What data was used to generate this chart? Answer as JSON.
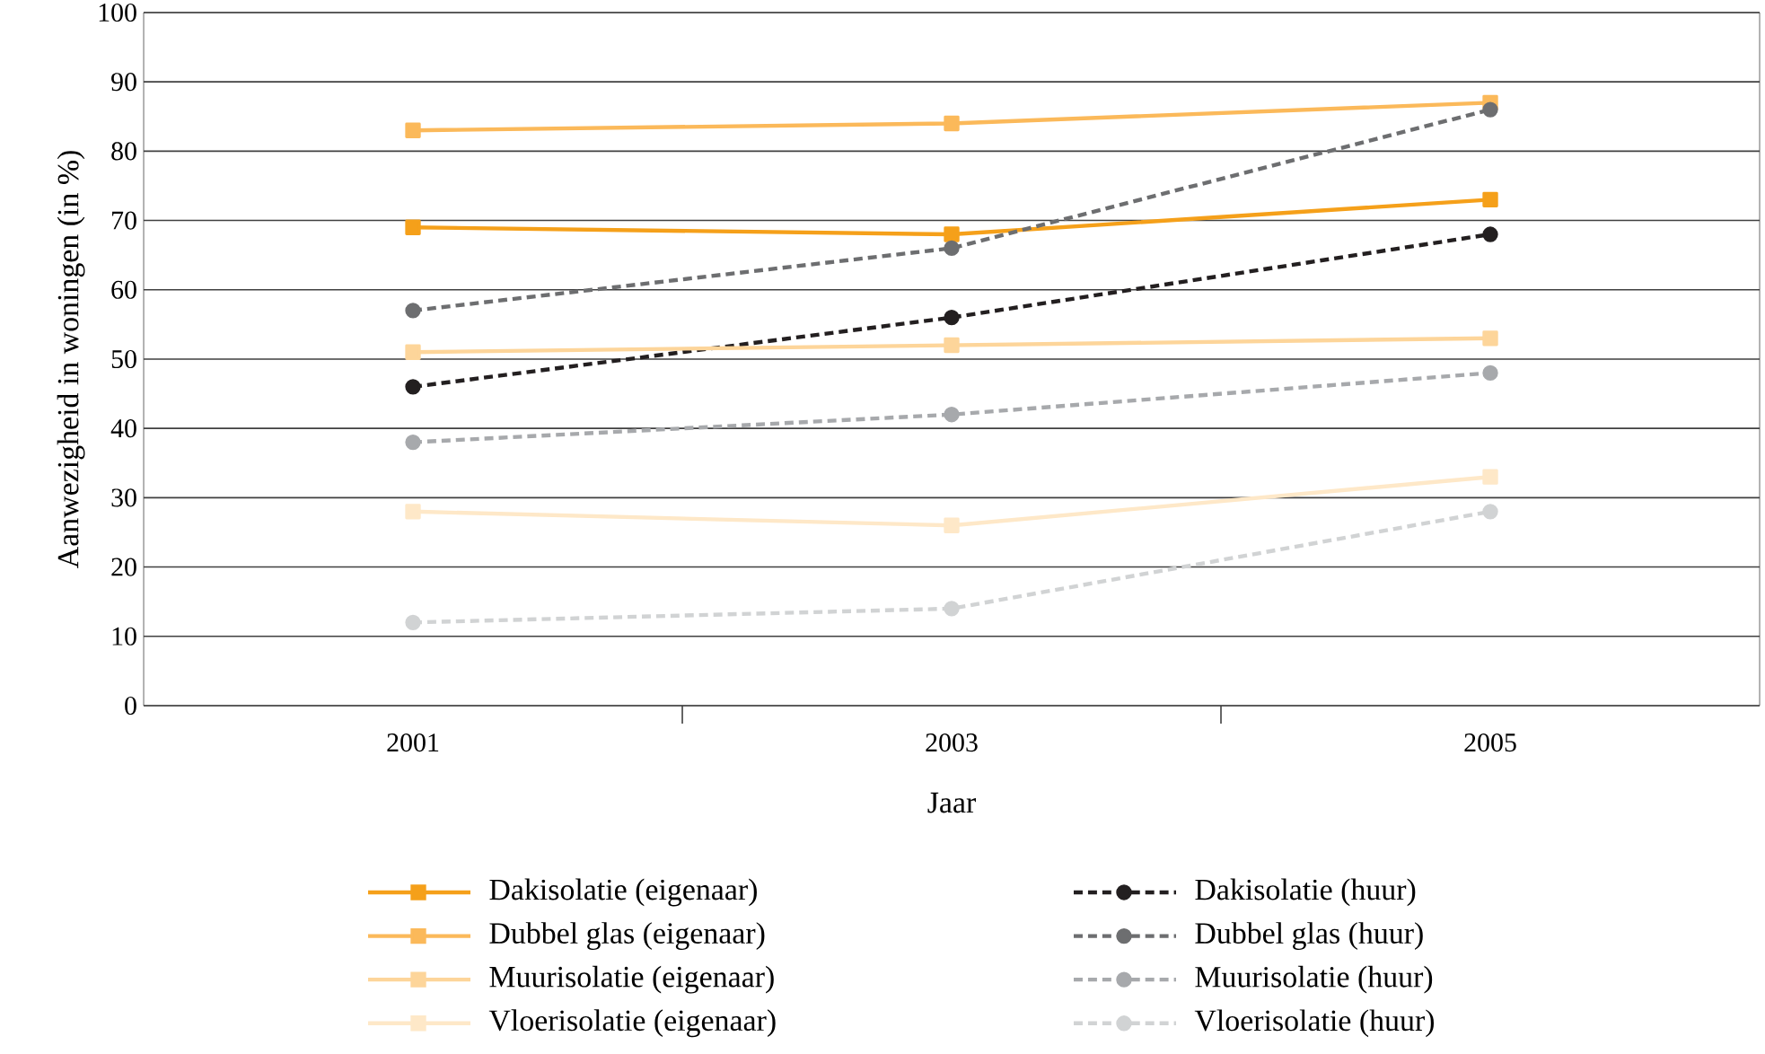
{
  "chart_data": {
    "type": "line",
    "xlabel": "Jaar",
    "ylabel": "Aanwezigheid in woningen (in %)",
    "x": [
      2001,
      2003,
      2005
    ],
    "xlim": [
      2000,
      2006
    ],
    "xticks": [
      {
        "value": 2001,
        "label": "2001"
      },
      {
        "value": 2002,
        "label": null
      },
      {
        "value": 2003,
        "label": "2003"
      },
      {
        "value": 2004,
        "label": null
      },
      {
        "value": 2005,
        "label": "2005"
      }
    ],
    "ylim": [
      0,
      100
    ],
    "yticks": [
      0,
      10,
      20,
      30,
      40,
      50,
      60,
      70,
      80,
      90,
      100
    ],
    "grid": "y",
    "legend": "bottom",
    "series": [
      {
        "name": "Dakisolatie (eigenaar)",
        "color": "#f5a01a",
        "values": [
          69,
          68,
          73
        ],
        "marker": "square",
        "line_style": "solid"
      },
      {
        "name": "Dakisolatie (huur)",
        "color": "#231f20",
        "values": [
          46,
          56,
          68
        ],
        "marker": "circle",
        "line_style": "dashed"
      },
      {
        "name": "Dubbel glas (eigenaar)",
        "color": "#fbb95a",
        "values": [
          83,
          84,
          87
        ],
        "marker": "square",
        "line_style": "solid"
      },
      {
        "name": "Dubbel glas (huur)",
        "color": "#6d6e70",
        "values": [
          57,
          66,
          86
        ],
        "marker": "circle",
        "line_style": "dashed"
      },
      {
        "name": "Muurisolatie (eigenaar)",
        "color": "#fdd59a",
        "values": [
          51,
          52,
          53
        ],
        "marker": "square",
        "line_style": "solid"
      },
      {
        "name": "Muurisolatie (huur)",
        "color": "#a7a9ac",
        "values": [
          38,
          42,
          48
        ],
        "marker": "circle",
        "line_style": "dashed"
      },
      {
        "name": "Vloerisolatie (eigenaar)",
        "color": "#fee8c8",
        "values": [
          28,
          26,
          33
        ],
        "marker": "square",
        "line_style": "solid"
      },
      {
        "name": "Vloerisolatie (huur)",
        "color": "#d1d3d4",
        "values": [
          12,
          14,
          28
        ],
        "marker": "circle",
        "line_style": "dashed"
      }
    ]
  }
}
